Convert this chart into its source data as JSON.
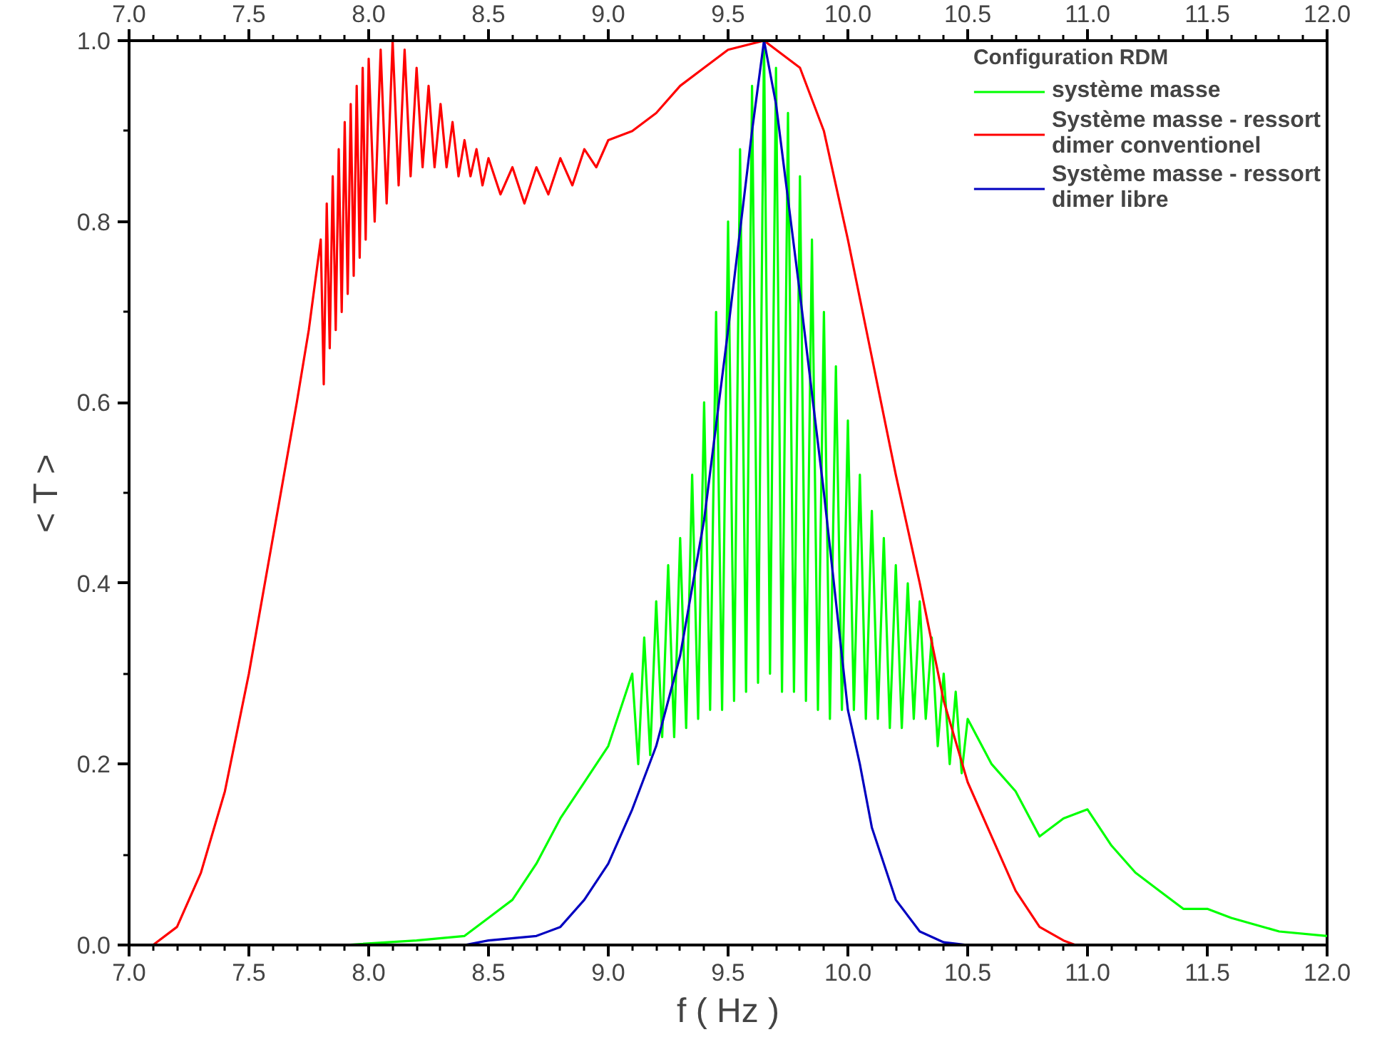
{
  "chart_data": {
    "type": "line",
    "xlabel": "f ( Hz )",
    "ylabel": "< T >",
    "legend_title": "Configuration RDM",
    "xlim": [
      7.0,
      12.0
    ],
    "x2lim": [
      7.0,
      12.0
    ],
    "ylim": [
      0.0,
      1.0
    ],
    "xticks": [
      {
        "value": 7.0,
        "label": "7.0"
      },
      {
        "value": 7.5,
        "label": "7.5"
      },
      {
        "value": 8.0,
        "label": "8.0"
      },
      {
        "value": 8.5,
        "label": "8.5"
      },
      {
        "value": 9.0,
        "label": "9.0"
      },
      {
        "value": 9.5,
        "label": "9.5"
      },
      {
        "value": 10.0,
        "label": "10.0"
      },
      {
        "value": 10.5,
        "label": "10.5"
      },
      {
        "value": 11.0,
        "label": "11.0"
      },
      {
        "value": 11.5,
        "label": "11.5"
      },
      {
        "value": 12.0,
        "label": "12.0"
      }
    ],
    "x2ticks": [
      {
        "value": 7.0,
        "label": "7.0"
      },
      {
        "value": 7.5,
        "label": "7.5"
      },
      {
        "value": 8.0,
        "label": "8.0"
      },
      {
        "value": 8.5,
        "label": "8.5"
      },
      {
        "value": 9.0,
        "label": "9.0"
      },
      {
        "value": 9.5,
        "label": "9.5"
      },
      {
        "value": 10.0,
        "label": "10.0"
      },
      {
        "value": 10.5,
        "label": "10.5"
      },
      {
        "value": 11.0,
        "label": "11.0"
      },
      {
        "value": 11.5,
        "label": "11.5"
      },
      {
        "value": 12.0,
        "label": "12.0"
      }
    ],
    "yticks": [
      {
        "value": 0.0,
        "label": "0.0"
      },
      {
        "value": 0.2,
        "label": "0.2"
      },
      {
        "value": 0.4,
        "label": "0.4"
      },
      {
        "value": 0.6,
        "label": "0.6"
      },
      {
        "value": 0.8,
        "label": "0.8"
      },
      {
        "value": 1.0,
        "label": "1.0"
      }
    ],
    "grid": false,
    "legend": "top right",
    "marker": "none",
    "line_style": "solid",
    "series": [
      {
        "name": "système masse",
        "color": "#00ff00",
        "x": [
          7.0,
          7.9,
          8.2,
          8.4,
          8.5,
          8.6,
          8.7,
          8.8,
          8.9,
          9.0,
          9.1,
          9.125,
          9.15,
          9.175,
          9.2,
          9.225,
          9.25,
          9.275,
          9.3,
          9.325,
          9.35,
          9.375,
          9.4,
          9.425,
          9.45,
          9.475,
          9.5,
          9.525,
          9.55,
          9.575,
          9.6,
          9.625,
          9.65,
          9.675,
          9.7,
          9.725,
          9.75,
          9.775,
          9.8,
          9.825,
          9.85,
          9.875,
          9.9,
          9.925,
          9.95,
          9.975,
          10.0,
          10.025,
          10.05,
          10.075,
          10.1,
          10.125,
          10.15,
          10.175,
          10.2,
          10.225,
          10.25,
          10.275,
          10.3,
          10.325,
          10.35,
          10.375,
          10.4,
          10.425,
          10.45,
          10.475,
          10.5,
          10.6,
          10.7,
          10.8,
          10.9,
          11.0,
          11.1,
          11.2,
          11.3,
          11.4,
          11.5,
          11.6,
          11.8,
          12.0
        ],
        "values": [
          0.0,
          0.0,
          0.005,
          0.01,
          0.03,
          0.05,
          0.09,
          0.14,
          0.18,
          0.22,
          0.3,
          0.2,
          0.34,
          0.21,
          0.38,
          0.23,
          0.42,
          0.23,
          0.45,
          0.24,
          0.52,
          0.25,
          0.6,
          0.26,
          0.7,
          0.26,
          0.8,
          0.27,
          0.88,
          0.28,
          0.95,
          0.29,
          1.0,
          0.3,
          0.97,
          0.28,
          0.92,
          0.28,
          0.85,
          0.27,
          0.78,
          0.26,
          0.7,
          0.25,
          0.64,
          0.26,
          0.58,
          0.26,
          0.52,
          0.25,
          0.48,
          0.25,
          0.45,
          0.24,
          0.42,
          0.24,
          0.4,
          0.25,
          0.38,
          0.25,
          0.34,
          0.22,
          0.3,
          0.2,
          0.28,
          0.19,
          0.25,
          0.2,
          0.17,
          0.12,
          0.14,
          0.15,
          0.11,
          0.08,
          0.06,
          0.04,
          0.04,
          0.03,
          0.015,
          0.01
        ]
      },
      {
        "name": "Système masse - ressort dimer conventionel",
        "color": "#ff0000",
        "x": [
          7.05,
          7.1,
          7.2,
          7.3,
          7.4,
          7.5,
          7.6,
          7.7,
          7.75,
          7.8,
          7.8125,
          7.825,
          7.8375,
          7.85,
          7.8625,
          7.875,
          7.8875,
          7.9,
          7.9125,
          7.925,
          7.9375,
          7.95,
          7.9625,
          7.975,
          7.9875,
          8.0,
          8.025,
          8.05,
          8.075,
          8.1,
          8.125,
          8.15,
          8.175,
          8.2,
          8.225,
          8.25,
          8.275,
          8.3,
          8.325,
          8.35,
          8.375,
          8.4,
          8.425,
          8.45,
          8.475,
          8.5,
          8.55,
          8.6,
          8.65,
          8.7,
          8.75,
          8.8,
          8.85,
          8.9,
          8.95,
          9.0,
          9.1,
          9.2,
          9.3,
          9.4,
          9.5,
          9.65,
          9.8,
          9.9,
          10.0,
          10.1,
          10.2,
          10.3,
          10.4,
          10.5,
          10.6,
          10.7,
          10.8,
          10.9,
          10.95
        ],
        "values": [
          0.0,
          0.0,
          0.02,
          0.08,
          0.17,
          0.3,
          0.45,
          0.6,
          0.68,
          0.78,
          0.62,
          0.82,
          0.66,
          0.85,
          0.68,
          0.88,
          0.7,
          0.91,
          0.72,
          0.93,
          0.74,
          0.95,
          0.76,
          0.97,
          0.78,
          0.98,
          0.8,
          0.99,
          0.82,
          1.0,
          0.84,
          0.99,
          0.85,
          0.97,
          0.86,
          0.95,
          0.86,
          0.93,
          0.86,
          0.91,
          0.85,
          0.89,
          0.85,
          0.88,
          0.84,
          0.87,
          0.83,
          0.86,
          0.82,
          0.86,
          0.83,
          0.87,
          0.84,
          0.88,
          0.86,
          0.89,
          0.9,
          0.92,
          0.95,
          0.97,
          0.99,
          1.0,
          0.97,
          0.9,
          0.78,
          0.65,
          0.52,
          0.4,
          0.27,
          0.18,
          0.12,
          0.06,
          0.02,
          0.005,
          0.0
        ]
      },
      {
        "name": "Système masse - ressort dimer libre",
        "color": "#0000c0",
        "x": [
          7.0,
          8.4,
          8.5,
          8.7,
          8.8,
          8.9,
          9.0,
          9.1,
          9.2,
          9.3,
          9.4,
          9.5,
          9.6,
          9.65,
          9.7,
          9.8,
          9.9,
          9.95,
          10.0,
          10.05,
          10.1,
          10.2,
          10.3,
          10.4,
          10.5
        ],
        "values": [
          0.0,
          0.0,
          0.005,
          0.01,
          0.02,
          0.05,
          0.09,
          0.15,
          0.22,
          0.32,
          0.47,
          0.68,
          0.9,
          1.0,
          0.93,
          0.72,
          0.5,
          0.38,
          0.26,
          0.2,
          0.13,
          0.05,
          0.015,
          0.003,
          0.0
        ]
      }
    ]
  }
}
